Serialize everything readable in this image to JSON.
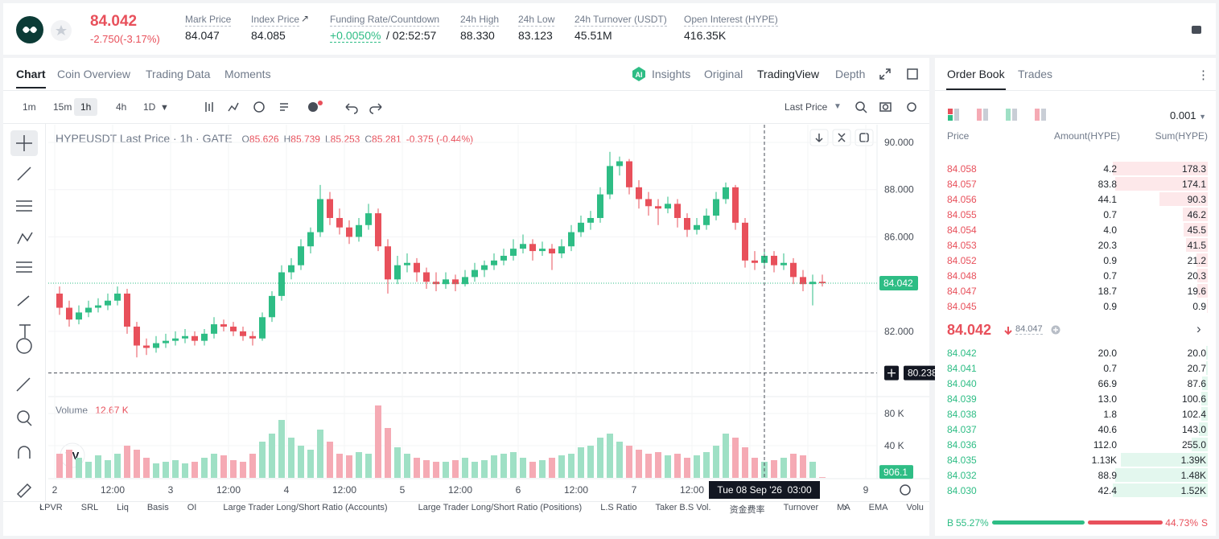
{
  "header": {
    "price": "84.042",
    "change": "-2.750(-3.17%)",
    "stats": [
      {
        "label": "Mark Price",
        "value": "84.047"
      },
      {
        "label": "Index Price",
        "value": "84.085"
      },
      {
        "label": "Funding Rate/Countdown",
        "value": "+0.0050%",
        "extra": "/ 02:52:57"
      },
      {
        "label": "24h High",
        "value": "88.330"
      },
      {
        "label": "24h Low",
        "value": "83.123"
      },
      {
        "label": "24h Turnover (USDT)",
        "value": "45.51M"
      },
      {
        "label": "Open Interest (HYPE)",
        "value": "416.35K"
      }
    ]
  },
  "chart_tabs": [
    "Chart",
    "Coin Overview",
    "Trading Data",
    "Moments"
  ],
  "view_tabs": [
    "Insights",
    "Original",
    "TradingView",
    "Depth"
  ],
  "intervals": [
    "1m",
    "15m",
    "1h",
    "4h",
    "1D"
  ],
  "price_source": "Last Price",
  "indicators": [
    "LPVR",
    "SRL",
    "Liq",
    "Basis",
    "OI",
    "Large Trader Long/Short Ratio (Accounts)",
    "Large Trader Long/Short Ratio (Positions)",
    "L.S Ratio",
    "Taker B.S Vol.",
    "资金费率",
    "Turnover",
    "MA",
    "EMA",
    "Volu"
  ],
  "chart_data": {
    "type": "candlestick",
    "title": "HYPEUSDT Last Price · 1h · GATE",
    "legend": [
      {
        "key": "O",
        "value": "85.626"
      },
      {
        "key": "H",
        "value": "85.739"
      },
      {
        "key": "L",
        "value": "85.253"
      },
      {
        "key": "C",
        "value": "85.281"
      }
    ],
    "legend_change": "-0.375 (-0.44%)",
    "candles": [
      [
        83.6,
        83.9,
        82.7,
        83.0
      ],
      [
        83.0,
        83.3,
        82.2,
        82.5
      ],
      [
        82.5,
        83.1,
        82.3,
        82.8
      ],
      [
        82.8,
        83.3,
        82.6,
        83.0
      ],
      [
        83.0,
        83.4,
        82.8,
        83.1
      ],
      [
        83.1,
        83.6,
        82.9,
        83.3
      ],
      [
        83.3,
        83.9,
        83.1,
        83.6
      ],
      [
        83.6,
        83.8,
        81.9,
        82.2
      ],
      [
        82.2,
        82.4,
        80.9,
        81.4
      ],
      [
        81.4,
        81.7,
        81.0,
        81.3
      ],
      [
        81.3,
        81.8,
        81.1,
        81.5
      ],
      [
        81.5,
        81.9,
        81.3,
        81.6
      ],
      [
        81.6,
        82.0,
        81.4,
        81.7
      ],
      [
        81.7,
        82.1,
        81.5,
        81.8
      ],
      [
        81.8,
        82.0,
        81.4,
        81.6
      ],
      [
        81.6,
        82.1,
        81.4,
        81.9
      ],
      [
        81.9,
        82.6,
        81.7,
        82.3
      ],
      [
        82.3,
        82.5,
        82.0,
        82.2
      ],
      [
        82.2,
        82.4,
        81.8,
        82.0
      ],
      [
        82.0,
        82.2,
        81.6,
        81.8
      ],
      [
        81.8,
        82.0,
        81.4,
        81.7
      ],
      [
        81.7,
        82.8,
        81.6,
        82.6
      ],
      [
        82.6,
        83.7,
        82.4,
        83.5
      ],
      [
        83.5,
        84.8,
        83.3,
        84.5
      ],
      [
        84.5,
        85.1,
        84.2,
        84.8
      ],
      [
        84.8,
        85.9,
        84.6,
        85.6
      ],
      [
        85.6,
        86.4,
        85.3,
        86.2
      ],
      [
        86.2,
        88.2,
        86.0,
        87.6
      ],
      [
        87.6,
        87.9,
        86.5,
        86.8
      ],
      [
        86.8,
        87.2,
        86.1,
        86.4
      ],
      [
        86.4,
        86.7,
        85.7,
        86.0
      ],
      [
        86.0,
        86.8,
        85.8,
        86.5
      ],
      [
        86.5,
        87.4,
        86.3,
        87.0
      ],
      [
        87.0,
        87.2,
        85.4,
        85.6
      ],
      [
        85.6,
        85.9,
        83.6,
        84.2
      ],
      [
        84.2,
        85.2,
        84.0,
        84.8
      ],
      [
        84.8,
        85.3,
        84.5,
        84.9
      ],
      [
        84.9,
        85.1,
        84.1,
        84.5
      ],
      [
        84.5,
        84.7,
        83.8,
        84.1
      ],
      [
        84.1,
        84.5,
        83.7,
        84.0
      ],
      [
        84.0,
        84.5,
        83.8,
        84.2
      ],
      [
        84.2,
        84.4,
        83.7,
        84.0
      ],
      [
        84.0,
        84.6,
        83.9,
        84.3
      ],
      [
        84.3,
        84.9,
        84.1,
        84.6
      ],
      [
        84.6,
        85.0,
        84.3,
        84.8
      ],
      [
        84.8,
        85.3,
        84.6,
        85.0
      ],
      [
        85.0,
        85.5,
        84.8,
        85.2
      ],
      [
        85.2,
        85.9,
        85.0,
        85.5
      ],
      [
        85.5,
        86.1,
        85.3,
        85.7
      ],
      [
        85.7,
        85.9,
        85.0,
        85.4
      ],
      [
        85.4,
        85.8,
        85.2,
        85.5
      ],
      [
        85.5,
        85.7,
        84.6,
        85.3
      ],
      [
        85.3,
        85.9,
        85.1,
        85.6
      ],
      [
        85.6,
        86.5,
        85.4,
        86.2
      ],
      [
        86.2,
        86.9,
        86.0,
        86.6
      ],
      [
        86.6,
        87.1,
        86.3,
        86.8
      ],
      [
        86.8,
        88.1,
        86.6,
        87.8
      ],
      [
        87.8,
        89.6,
        87.6,
        89.0
      ],
      [
        89.0,
        89.4,
        88.6,
        89.2
      ],
      [
        89.2,
        89.3,
        87.8,
        88.1
      ],
      [
        88.1,
        88.4,
        87.2,
        87.6
      ],
      [
        87.6,
        87.9,
        86.9,
        87.3
      ],
      [
        87.3,
        87.6,
        86.5,
        87.2
      ],
      [
        87.2,
        87.7,
        87.0,
        87.4
      ],
      [
        87.4,
        87.6,
        86.4,
        86.8
      ],
      [
        86.8,
        87.0,
        86.0,
        86.3
      ],
      [
        86.3,
        86.8,
        86.1,
        86.5
      ],
      [
        86.5,
        87.2,
        86.3,
        86.9
      ],
      [
        86.9,
        87.9,
        86.7,
        87.6
      ],
      [
        87.6,
        88.3,
        87.4,
        88.1
      ],
      [
        88.1,
        88.2,
        86.3,
        86.6
      ],
      [
        86.6,
        86.8,
        84.7,
        85.0
      ],
      [
        85.0,
        85.4,
        84.6,
        84.9
      ],
      [
        84.9,
        85.5,
        84.7,
        85.2
      ],
      [
        85.2,
        85.4,
        84.5,
        84.8
      ],
      [
        84.8,
        85.3,
        84.6,
        84.9
      ],
      [
        84.9,
        85.1,
        84.0,
        84.3
      ],
      [
        84.3,
        84.6,
        83.7,
        84.0
      ],
      [
        84.0,
        84.4,
        83.1,
        84.1
      ],
      [
        84.1,
        84.4,
        83.9,
        84.04
      ]
    ],
    "ylim": [
      79.34,
      90.75
    ],
    "yticks": [
      {
        "value": 82,
        "label": "82.000"
      },
      {
        "value": 86,
        "label": "86.000"
      },
      {
        "value": 88,
        "label": "88.000"
      },
      {
        "value": 90,
        "label": "90.000"
      }
    ],
    "xticks": [
      "2",
      "12:00",
      "3",
      "12:00",
      "4",
      "12:00",
      "5",
      "12:00",
      "6",
      "12:00",
      "7",
      "12:00",
      null,
      null,
      "9"
    ],
    "last_price": 84.042,
    "crosshair": {
      "price": 80.238,
      "time": "Tue 08 Sep '26  03:00"
    },
    "grid": true,
    "colors": {
      "up": "#2ebd85",
      "down": "#e8505b",
      "up_volume": "#9fe0c5",
      "down_volume": "#f5aab4"
    },
    "volume": {
      "title": "Volume",
      "current": {
        "value": 12670,
        "label": "12.67 K"
      },
      "ylim": [
        0,
        99000
      ],
      "yticks": [
        {
          "value": 40000,
          "label": "40 K"
        },
        {
          "value": 80000,
          "label": "80 K"
        }
      ],
      "values": [
        30000,
        35000,
        25000,
        20000,
        28000,
        22000,
        30000,
        40000,
        35000,
        25000,
        18000,
        20000,
        22000,
        18000,
        20000,
        25000,
        30000,
        28000,
        22000,
        20000,
        30000,
        45000,
        55000,
        72000,
        50000,
        40000,
        35000,
        60000,
        45000,
        30000,
        28000,
        32000,
        30000,
        90000,
        62000,
        38000,
        30000,
        25000,
        22000,
        20000,
        20000,
        22000,
        25000,
        20000,
        22000,
        28000,
        30000,
        32000,
        25000,
        20000,
        22000,
        25000,
        28000,
        30000,
        38000,
        40000,
        50000,
        55000,
        45000,
        40000,
        35000,
        30000,
        32000,
        28000,
        30000,
        25000,
        28000,
        32000,
        40000,
        55000,
        50000,
        38000,
        25000,
        20000,
        22000,
        25000,
        30000,
        28000,
        20000,
        906.1
      ]
    }
  },
  "order_book": {
    "tabs": [
      "Order Book",
      "Trades"
    ],
    "precision": "0.001",
    "columns": [
      "Price",
      "Amount(HYPE)",
      "Sum(HYPE)"
    ],
    "asks": [
      {
        "price": "84.058",
        "amount": "4.2",
        "sum": 178.3
      },
      {
        "price": "84.057",
        "amount": "83.8",
        "sum": 174.1
      },
      {
        "price": "84.056",
        "amount": "44.1",
        "sum": 90.3
      },
      {
        "price": "84.055",
        "amount": "0.7",
        "sum": 46.2
      },
      {
        "price": "84.054",
        "amount": "4.0",
        "sum": 45.5
      },
      {
        "price": "84.053",
        "amount": "20.3",
        "sum": 41.5
      },
      {
        "price": "84.052",
        "amount": "0.9",
        "sum": 21.2
      },
      {
        "price": "84.048",
        "amount": "0.7",
        "sum": 20.3
      },
      {
        "price": "84.047",
        "amount": "18.7",
        "sum": 19.6
      },
      {
        "price": "84.045",
        "amount": "0.9",
        "sum": 0.9
      }
    ],
    "mid": {
      "price": "84.042",
      "index": "84.047"
    },
    "bids": [
      {
        "price": "84.042",
        "amount": "20.0",
        "sum": {
          "value": 20,
          "label": "20.0"
        }
      },
      {
        "price": "84.041",
        "amount": "0.7",
        "sum": 20.7
      },
      {
        "price": "84.040",
        "amount": "66.9",
        "sum": 87.6
      },
      {
        "price": "84.039",
        "amount": "13.0",
        "sum": 100.6
      },
      {
        "price": "84.038",
        "amount": "1.8",
        "sum": 102.4
      },
      {
        "price": "84.037",
        "amount": "40.6",
        "sum": {
          "value": 143,
          "label": "143.0"
        }
      },
      {
        "price": "84.036",
        "amount": "112.0",
        "sum": {
          "value": 255,
          "label": "255.0"
        }
      },
      {
        "price": "84.035",
        "amount": "1.13K",
        "sum": {
          "value": 1390,
          "label": "1.39K"
        }
      },
      {
        "price": "84.032",
        "amount": "88.9",
        "sum": {
          "value": 1480,
          "label": "1.48K"
        }
      },
      {
        "price": "84.030",
        "amount": "42.4",
        "sum": {
          "value": 1520,
          "label": "1.52K"
        }
      }
    ],
    "ratio": {
      "buy_key": "B",
      "buy": 55.27,
      "buy_label": "55.27%",
      "sell": 44.73,
      "sell_label": "44.73%",
      "sell_key": "S"
    }
  }
}
